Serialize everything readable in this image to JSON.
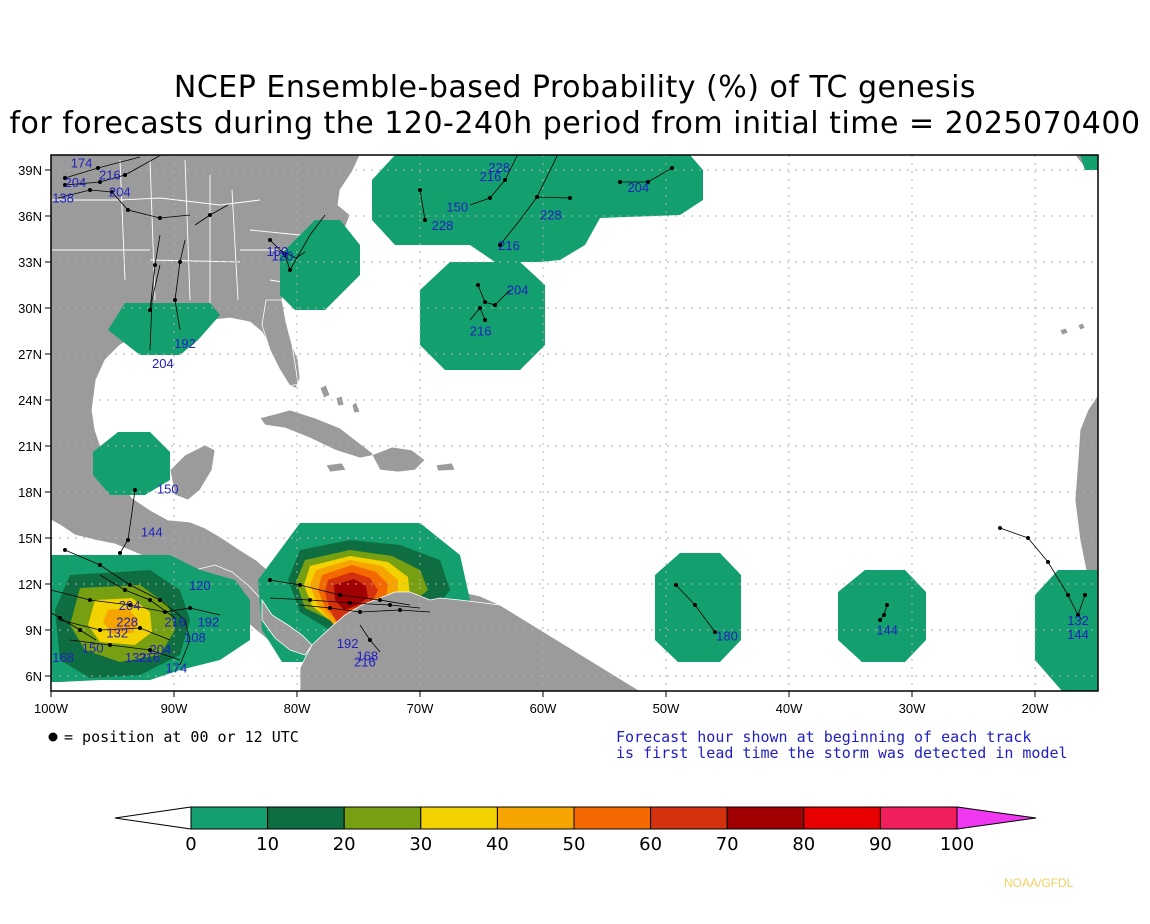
{
  "title_line1": "NCEP Ensemble-based Probability (%) of TC genesis",
  "title_line2": "for forecasts during the 120-240h period from initial time = 2025070400",
  "lat_labels": [
    "39N",
    "36N",
    "33N",
    "30N",
    "27N",
    "24N",
    "21N",
    "18N",
    "15N",
    "12N",
    "9N",
    "6N"
  ],
  "lon_labels": [
    "100W",
    "90W",
    "80W",
    "70W",
    "60W",
    "50W",
    "40W",
    "30W",
    "20W"
  ],
  "legend_dot_text": "= position at 00 or 12 UTC",
  "note_line1": "Forecast hour shown at beginning of each track",
  "note_line2": "is first lead time the storm was detected in model",
  "credit": "NOAA/GFDL",
  "colorbar": {
    "ticks": [
      "0",
      "10",
      "20",
      "30",
      "40",
      "50",
      "60",
      "70",
      "80",
      "90",
      "100"
    ],
    "colors": [
      "#14a06e",
      "#0e6e42",
      "#76a012",
      "#f2d200",
      "#f6a400",
      "#f46800",
      "#d4320e",
      "#a00000",
      "#e80000",
      "#f01e5a"
    ],
    "low_color": "#ffffff",
    "high_color": "#f038f0"
  },
  "colors": {
    "land": "#9b9b9b",
    "ocean": "#ffffff",
    "prob_10_20": "#14a06e",
    "track_label": "#2020c0"
  },
  "track_labels": [
    {
      "text": "174",
      "lon": -98.4,
      "lat": 39.2
    },
    {
      "text": "204",
      "lon": -98.9,
      "lat": 37.9
    },
    {
      "text": "216",
      "lon": -96.1,
      "lat": 38.4
    },
    {
      "text": "138",
      "lon": -99.9,
      "lat": 36.9
    },
    {
      "text": "204",
      "lon": -95.3,
      "lat": 37.3
    },
    {
      "text": "150",
      "lon": -82.5,
      "lat": 33.4
    },
    {
      "text": "120",
      "lon": -82.1,
      "lat": 33.1
    },
    {
      "text": "204",
      "lon": -91.8,
      "lat": 26.1
    },
    {
      "text": "192",
      "lon": -90.0,
      "lat": 27.4
    },
    {
      "text": "150",
      "lon": -91.4,
      "lat": 17.9
    },
    {
      "text": "144",
      "lon": -92.7,
      "lat": 15.1
    },
    {
      "text": "120",
      "lon": -88.8,
      "lat": 11.6
    },
    {
      "text": "204",
      "lon": -94.5,
      "lat": 10.3
    },
    {
      "text": "228",
      "lon": -94.7,
      "lat": 9.2
    },
    {
      "text": "132",
      "lon": -95.5,
      "lat": 8.5
    },
    {
      "text": "216",
      "lon": -90.8,
      "lat": 9.2
    },
    {
      "text": "192",
      "lon": -88.1,
      "lat": 9.2
    },
    {
      "text": "108",
      "lon": -89.2,
      "lat": 8.2
    },
    {
      "text": "204",
      "lon": -92.0,
      "lat": 7.4
    },
    {
      "text": "168",
      "lon": -99.9,
      "lat": 6.9
    },
    {
      "text": "150",
      "lon": -97.5,
      "lat": 7.5
    },
    {
      "text": "132",
      "lon": -94.0,
      "lat": 6.9
    },
    {
      "text": "216",
      "lon": -92.9,
      "lat": 6.9
    },
    {
      "text": "174",
      "lon": -90.7,
      "lat": 6.2
    },
    {
      "text": "192",
      "lon": -76.8,
      "lat": 7.8
    },
    {
      "text": "168",
      "lon": -75.2,
      "lat": 7.0
    },
    {
      "text": "216",
      "lon": -75.4,
      "lat": 6.6
    },
    {
      "text": "228",
      "lon": -64.5,
      "lat": 38.9
    },
    {
      "text": "216",
      "lon": -65.2,
      "lat": 38.3
    },
    {
      "text": "150",
      "lon": -67.9,
      "lat": 36.3
    },
    {
      "text": "228",
      "lon": -69.1,
      "lat": 35.1
    },
    {
      "text": "228",
      "lon": -60.3,
      "lat": 35.8
    },
    {
      "text": "216",
      "lon": -63.7,
      "lat": 33.8
    },
    {
      "text": "204",
      "lon": -53.2,
      "lat": 37.6
    },
    {
      "text": "204",
      "lon": -63.0,
      "lat": 30.9
    },
    {
      "text": "216",
      "lon": -66.0,
      "lat": 28.2
    },
    {
      "text": "180",
      "lon": -46.0,
      "lat": 8.3
    },
    {
      "text": "144",
      "lon": -33.0,
      "lat": 8.7
    },
    {
      "text": "132",
      "lon": -17.5,
      "lat": 9.3
    },
    {
      "text": "144",
      "lon": -17.5,
      "lat": 8.4
    }
  ]
}
